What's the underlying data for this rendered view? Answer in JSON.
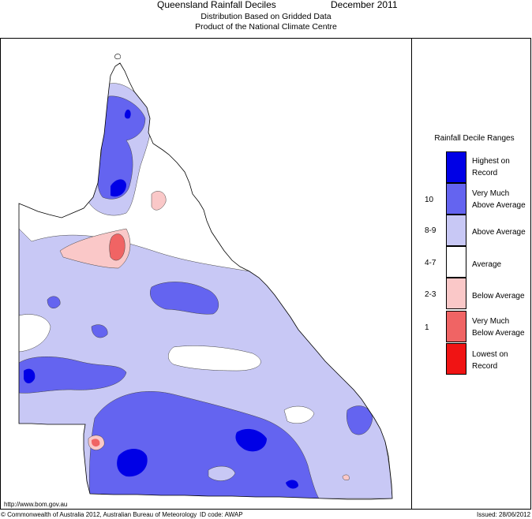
{
  "header": {
    "title": "Queensland Rainfall Deciles",
    "period": "December 2011",
    "subtitle_line1": "Distribution Based on Gridded Data",
    "subtitle_line2": "Product of the National Climate Centre"
  },
  "legend": {
    "title": "Rainfall Decile Ranges",
    "items": [
      {
        "range": "",
        "label_line1": "Highest on",
        "label_line2": "Record",
        "color": "#0000e6"
      },
      {
        "range": "10",
        "label_line1": "Very Much",
        "label_line2": "Above Average",
        "color": "#6464f0"
      },
      {
        "range": "8-9",
        "label_line1": "Above Average",
        "label_line2": "",
        "color": "#c8c8f5"
      },
      {
        "range": "4-7",
        "label_line1": "Average",
        "label_line2": "",
        "color": "#ffffff"
      },
      {
        "range": "2-3",
        "label_line1": "Below Average",
        "label_line2": "",
        "color": "#fac8c8"
      },
      {
        "range": "1",
        "label_line1": "Very Much",
        "label_line2": "Below Average",
        "color": "#f06464"
      },
      {
        "range": "",
        "label_line1": "Lowest on",
        "label_line2": "Record",
        "color": "#f01414"
      }
    ]
  },
  "footer": {
    "url": "http://www.bom.gov.au",
    "copyright": "© Commonwealth of Australia 2012, Australian Bureau of Meteorology",
    "id_code": "ID code: AWAP",
    "issued": "Issued: 28/06/2012"
  }
}
